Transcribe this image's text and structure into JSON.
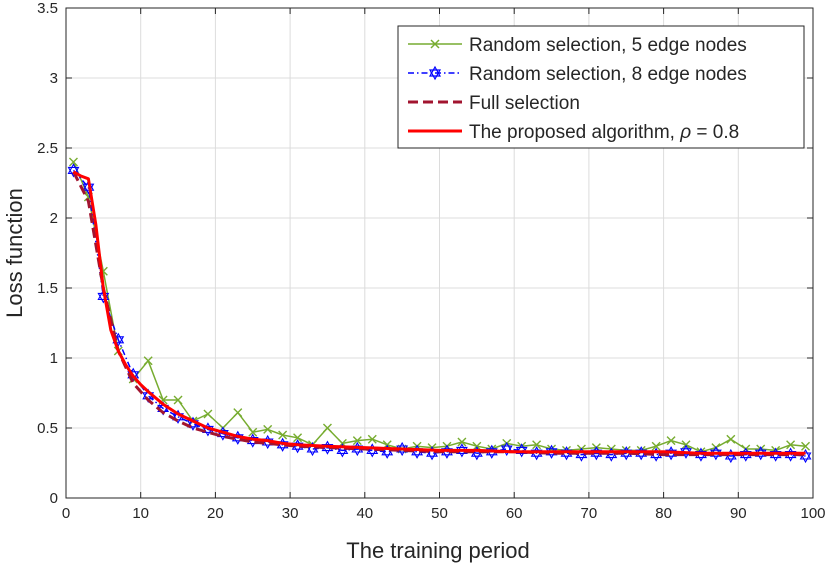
{
  "chart_data": {
    "type": "line",
    "title": "",
    "xlabel": "The training period",
    "ylabel": "Loss function",
    "xlim": [
      0,
      100
    ],
    "ylim": [
      0,
      3.5
    ],
    "xticks": [
      0,
      10,
      20,
      30,
      40,
      50,
      60,
      70,
      80,
      90,
      100
    ],
    "yticks": [
      0,
      0.5,
      1,
      1.5,
      2,
      2.5,
      3,
      3.5
    ],
    "xtick_labels": [
      "0",
      "10",
      "20",
      "30",
      "40",
      "50",
      "60",
      "70",
      "80",
      "90",
      "100"
    ],
    "ytick_labels": [
      "0",
      "0.5",
      "1",
      "1.5",
      "2",
      "2.5",
      "3",
      "3.5"
    ],
    "grid": true,
    "legend_position": "top-right",
    "series": [
      {
        "name": "Random selection, 5 edge nodes",
        "color": "#77ac30",
        "line_style": "solid",
        "marker": "x",
        "x": [
          1,
          3,
          5,
          7,
          9,
          11,
          13,
          15,
          17,
          19,
          21,
          23,
          25,
          27,
          29,
          31,
          33,
          35,
          37,
          39,
          41,
          43,
          45,
          47,
          49,
          51,
          53,
          55,
          57,
          59,
          61,
          63,
          65,
          67,
          69,
          71,
          73,
          75,
          77,
          79,
          81,
          83,
          85,
          87,
          89,
          91,
          93,
          95,
          97,
          99
        ],
        "values": [
          2.4,
          2.15,
          1.62,
          1.05,
          0.85,
          0.98,
          0.7,
          0.7,
          0.55,
          0.6,
          0.5,
          0.61,
          0.47,
          0.49,
          0.45,
          0.43,
          0.38,
          0.5,
          0.39,
          0.41,
          0.42,
          0.38,
          0.35,
          0.37,
          0.36,
          0.37,
          0.4,
          0.37,
          0.35,
          0.39,
          0.37,
          0.38,
          0.35,
          0.34,
          0.35,
          0.36,
          0.35,
          0.34,
          0.34,
          0.37,
          0.41,
          0.38,
          0.33,
          0.36,
          0.42,
          0.35,
          0.35,
          0.34,
          0.38,
          0.37
        ]
      },
      {
        "name": "Random selection, 8 edge nodes",
        "color": "#0000ff",
        "line_style": "dash-dot",
        "marker": "hexagram",
        "x": [
          1,
          3,
          5,
          7,
          9,
          11,
          13,
          15,
          17,
          19,
          21,
          23,
          25,
          27,
          29,
          31,
          33,
          35,
          37,
          39,
          41,
          43,
          45,
          47,
          49,
          51,
          53,
          55,
          57,
          59,
          61,
          63,
          65,
          67,
          69,
          71,
          73,
          75,
          77,
          79,
          81,
          83,
          85,
          87,
          89,
          91,
          93,
          95,
          97,
          99
        ],
        "values": [
          2.34,
          2.22,
          1.44,
          1.13,
          0.88,
          0.73,
          0.64,
          0.58,
          0.53,
          0.49,
          0.46,
          0.43,
          0.41,
          0.4,
          0.38,
          0.37,
          0.35,
          0.36,
          0.34,
          0.35,
          0.34,
          0.33,
          0.35,
          0.33,
          0.32,
          0.33,
          0.34,
          0.32,
          0.33,
          0.35,
          0.34,
          0.32,
          0.33,
          0.32,
          0.31,
          0.32,
          0.31,
          0.32,
          0.32,
          0.31,
          0.32,
          0.33,
          0.31,
          0.32,
          0.3,
          0.31,
          0.32,
          0.31,
          0.31,
          0.3
        ]
      },
      {
        "name": "Full selection",
        "color": "#a2142f",
        "line_style": "dashed",
        "marker": "none",
        "x": [
          1,
          3,
          5,
          7,
          9,
          11,
          13,
          15,
          17,
          19,
          21,
          23,
          25,
          27,
          29,
          31,
          35,
          40,
          45,
          50,
          55,
          60,
          65,
          70,
          75,
          80,
          85,
          90,
          95,
          99
        ],
        "values": [
          2.33,
          2.12,
          1.5,
          1.05,
          0.82,
          0.7,
          0.61,
          0.55,
          0.5,
          0.47,
          0.44,
          0.42,
          0.4,
          0.39,
          0.38,
          0.37,
          0.36,
          0.35,
          0.34,
          0.33,
          0.33,
          0.33,
          0.32,
          0.32,
          0.32,
          0.31,
          0.31,
          0.31,
          0.31,
          0.31
        ]
      },
      {
        "name": "The proposed algorithm, ρ = 0.8",
        "color": "#ff0000",
        "line_style": "solid",
        "marker": "none",
        "x": [
          1,
          2,
          3,
          4,
          5,
          6,
          7,
          8,
          9,
          10,
          11,
          13,
          15,
          17,
          19,
          21,
          23,
          25,
          27,
          29,
          31,
          35,
          40,
          45,
          50,
          55,
          60,
          65,
          70,
          75,
          80,
          85,
          90,
          95,
          99
        ],
        "values": [
          2.33,
          2.3,
          2.28,
          1.95,
          1.5,
          1.2,
          1.05,
          0.95,
          0.87,
          0.81,
          0.76,
          0.67,
          0.6,
          0.55,
          0.5,
          0.47,
          0.44,
          0.42,
          0.41,
          0.39,
          0.38,
          0.37,
          0.36,
          0.35,
          0.34,
          0.34,
          0.33,
          0.33,
          0.33,
          0.33,
          0.33,
          0.32,
          0.32,
          0.32,
          0.32
        ]
      }
    ],
    "legend_labels": {
      "s0": "Random selection, 5 edge nodes",
      "s1": "Random selection, 8 edge nodes",
      "s2": "Full selection",
      "s3_prefix": "The proposed algorithm, ",
      "s3_symbol": "ρ",
      "s3_suffix": " = 0.8"
    }
  }
}
